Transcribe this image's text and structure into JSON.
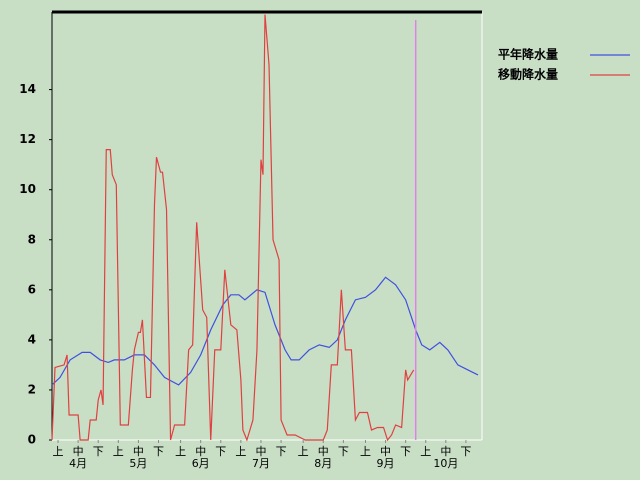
{
  "chart_data": {
    "type": "line",
    "xlim": [
      0,
      214
    ],
    "xticks": [
      {
        "value": 3,
        "label": "上"
      },
      {
        "value": 13,
        "label": "中"
      },
      {
        "value": 23,
        "label": "下"
      },
      {
        "value": 33,
        "label": "上"
      },
      {
        "value": 43,
        "label": "中"
      },
      {
        "value": 53,
        "label": "下"
      },
      {
        "value": 64,
        "label": "上"
      },
      {
        "value": 74,
        "label": "中"
      },
      {
        "value": 84,
        "label": "下"
      },
      {
        "value": 94,
        "label": "上"
      },
      {
        "value": 104,
        "label": "中"
      },
      {
        "value": 114,
        "label": "下"
      },
      {
        "value": 125,
        "label": "上"
      },
      {
        "value": 135,
        "label": "中"
      },
      {
        "value": 145,
        "label": "下"
      },
      {
        "value": 156,
        "label": "上"
      },
      {
        "value": 166,
        "label": "中"
      },
      {
        "value": 176,
        "label": "下"
      },
      {
        "value": 186,
        "label": "上"
      },
      {
        "value": 196,
        "label": "中"
      },
      {
        "value": 206,
        "label": "下"
      }
    ],
    "month_labels": [
      {
        "value": 13,
        "label": "4月"
      },
      {
        "value": 43,
        "label": "5月"
      },
      {
        "value": 74,
        "label": "6月"
      },
      {
        "value": 104,
        "label": "7月"
      },
      {
        "value": 135,
        "label": "8月"
      },
      {
        "value": 166,
        "label": "9月"
      },
      {
        "value": 196,
        "label": "10月"
      }
    ],
    "ylim": [
      0,
      17.1
    ],
    "yticks": [
      0,
      2,
      4,
      6,
      8,
      10,
      12,
      14
    ],
    "marker_x": 181,
    "marker_color": "#e080e8",
    "series": [
      {
        "name": "平年降水量",
        "color": "#4050e0",
        "x": [
          0,
          4,
          9,
          15,
          19,
          24,
          28,
          31,
          36,
          41,
          46,
          51,
          56,
          63,
          69,
          74,
          79,
          85,
          89,
          93,
          96,
          102,
          106,
          111,
          116,
          119,
          123,
          128,
          133,
          138,
          142,
          146,
          151,
          156,
          161,
          166,
          171,
          176,
          181,
          184,
          188,
          193,
          197,
          202,
          207,
          212
        ],
        "values": [
          2.2,
          2.5,
          3.2,
          3.5,
          3.5,
          3.2,
          3.1,
          3.2,
          3.2,
          3.4,
          3.4,
          3.0,
          2.5,
          2.2,
          2.7,
          3.4,
          4.4,
          5.4,
          5.8,
          5.8,
          5.6,
          6.0,
          5.9,
          4.6,
          3.6,
          3.2,
          3.2,
          3.6,
          3.8,
          3.7,
          4.0,
          4.8,
          5.6,
          5.7,
          6.0,
          6.5,
          6.2,
          5.6,
          4.4,
          3.8,
          3.6,
          3.9,
          3.6,
          3.0,
          2.8,
          2.6
        ]
      },
      {
        "name": "移動降水量",
        "color": "#e04040",
        "x": [
          0,
          1.5,
          6,
          7.5,
          8.5,
          13,
          14,
          18,
          19,
          22,
          23,
          24.4,
          25.4,
          27,
          29,
          30,
          32,
          34,
          38,
          40,
          41,
          43,
          44,
          45,
          47,
          49,
          51,
          52,
          54,
          55,
          57,
          59,
          61,
          66,
          68,
          70,
          72,
          75,
          77,
          79,
          81,
          84,
          86,
          89,
          92,
          94,
          95,
          97,
          100,
          102,
          104,
          105,
          106,
          108,
          110,
          113,
          114,
          117,
          121,
          126,
          135,
          137,
          139,
          142,
          144,
          146,
          149,
          151,
          153,
          157,
          159,
          162,
          165,
          167,
          169,
          171,
          174,
          176,
          177,
          180
        ],
        "values": [
          0,
          2.9,
          3.0,
          3.4,
          1.0,
          1.0,
          0,
          0,
          0.8,
          0.8,
          1.6,
          2.0,
          1.4,
          11.6,
          11.6,
          10.6,
          10.2,
          0.6,
          0.6,
          2.8,
          3.6,
          4.3,
          4.3,
          4.8,
          1.7,
          1.7,
          9.4,
          11.3,
          10.7,
          10.7,
          9.2,
          0,
          0.6,
          0.6,
          3.6,
          3.8,
          8.7,
          5.2,
          4.9,
          0,
          3.6,
          3.6,
          6.8,
          4.6,
          4.4,
          2.4,
          0.4,
          0,
          0.8,
          3.6,
          11.2,
          10.6,
          17.0,
          15.0,
          8.0,
          7.2,
          0.8,
          0.2,
          0.2,
          0,
          0,
          0.4,
          3.0,
          3.0,
          6.0,
          3.6,
          3.6,
          0.8,
          1.1,
          1.1,
          0.4,
          0.5,
          0.5,
          0,
          0.2,
          0.6,
          0.5,
          2.8,
          2.4,
          2.8
        ]
      }
    ]
  }
}
